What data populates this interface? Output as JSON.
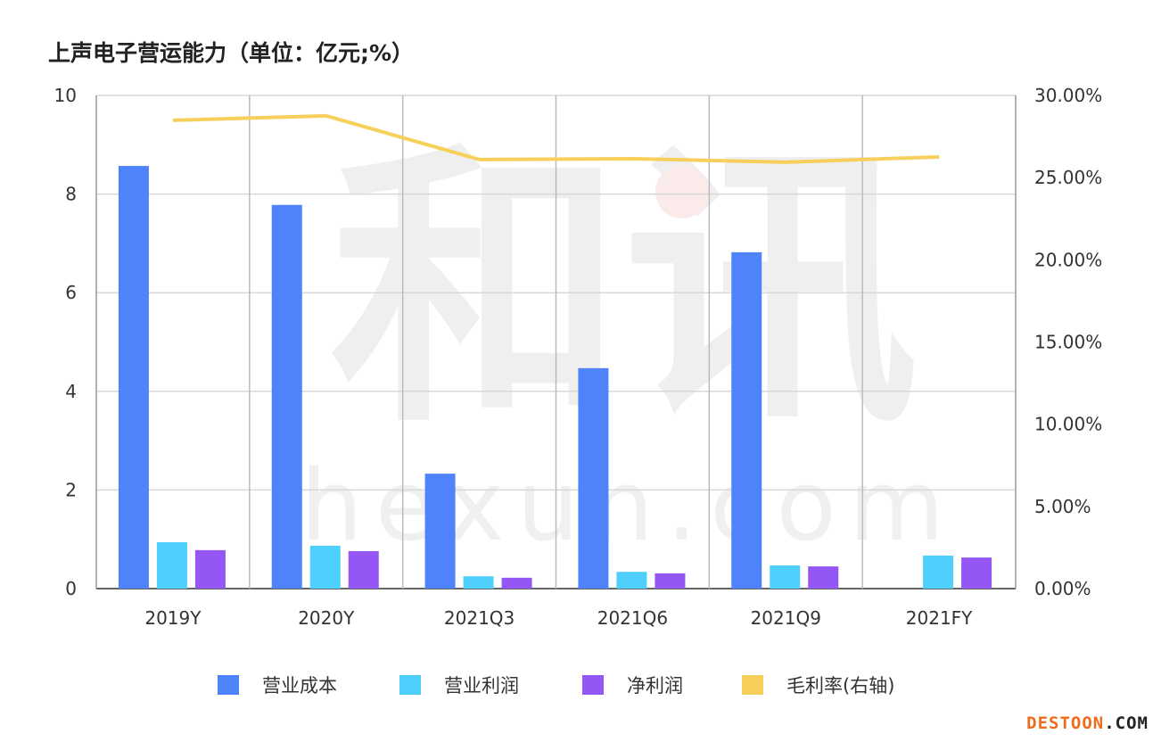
{
  "chart_data": {
    "type": "bar",
    "title": "上声电子营运能力（单位：亿元;%）",
    "categories": [
      "2019Y",
      "2020Y",
      "2021Q3",
      "2021Q6",
      "2021Q9",
      "2021FY"
    ],
    "series": [
      {
        "name": "营业成本",
        "type": "bar",
        "axis": "left",
        "color": "#4F83FB",
        "values": [
          8.57,
          7.78,
          2.33,
          4.47,
          6.82,
          null
        ]
      },
      {
        "name": "营业利润",
        "type": "bar",
        "axis": "left",
        "color": "#4FCFFB",
        "values": [
          0.94,
          0.87,
          0.25,
          0.34,
          0.47,
          0.67
        ]
      },
      {
        "name": "净利润",
        "type": "bar",
        "axis": "left",
        "color": "#9456F5",
        "values": [
          0.78,
          0.76,
          0.22,
          0.31,
          0.45,
          0.63
        ]
      },
      {
        "name": "毛利率(右轴)",
        "type": "line",
        "axis": "right",
        "color": "#F6D05A",
        "values": [
          28.49,
          28.76,
          26.1,
          26.15,
          25.94,
          26.26
        ]
      }
    ],
    "ylim_left": [
      0,
      10
    ],
    "yticks_left": [
      "0",
      "2",
      "4",
      "6",
      "8",
      "10"
    ],
    "ylim_right": [
      0,
      30
    ],
    "yticks_right": [
      "0.00%",
      "5.00%",
      "10.00%",
      "15.00%",
      "20.00%",
      "25.00%",
      "30.00%"
    ],
    "grid": true,
    "legend": "bottom"
  },
  "watermark": {
    "text": "和讯 hexun.com"
  },
  "brand": {
    "text": "DESTOON.COM",
    "prefix": "DESTOON",
    "suffix": ".COM",
    "color": "#F26B1D"
  }
}
